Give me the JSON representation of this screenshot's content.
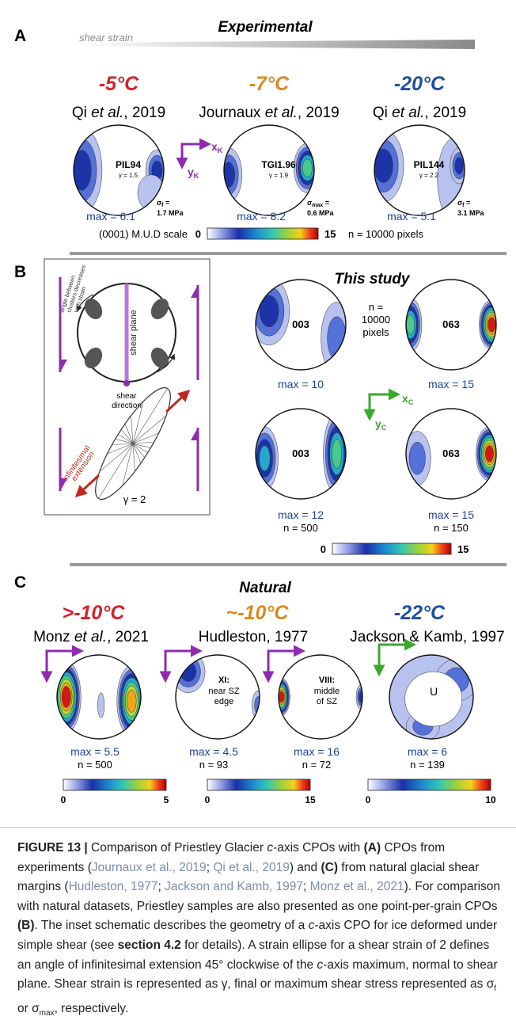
{
  "panel_a": {
    "letter": "A",
    "title": "Experimental",
    "gradient_label": "shear strain",
    "columns": [
      {
        "temperature": "-5°C",
        "temperature_color": "#d7202a",
        "reference": {
          "author": "Qi ",
          "etal": "et al.",
          "year": ", 2019"
        },
        "sample": "PIL94",
        "strain": "γ = 1.5",
        "stress": {
          "symbol": "σ",
          "sub": "f",
          "eq": " =",
          "value": "1.7 MPa"
        },
        "max": "max = 6.1"
      },
      {
        "temperature": "-7°C",
        "temperature_color": "#d98a1f",
        "reference": {
          "author": "Journaux ",
          "etal": "et al.",
          "year": ", 2019"
        },
        "sample": "TGI1.96",
        "strain": "γ = 1.9",
        "stress": {
          "symbol": "σ",
          "sub": "max",
          "eq": " =",
          "value": "0.6 MPa"
        },
        "max": "max = 8.2"
      },
      {
        "temperature": "-20°C",
        "temperature_color": "#1f4fa0",
        "reference": {
          "author": "Qi ",
          "etal": "et al.",
          "year": ", 2019"
        },
        "sample": "PIL144",
        "strain": "γ = 2.2",
        "stress": {
          "symbol": "σ",
          "sub": "f",
          "eq": " =",
          "value": "3.1 MPa"
        },
        "max": "max = 5.1"
      }
    ],
    "axes": {
      "x": "x",
      "x_sub": "K",
      "y": "y",
      "y_sub": "K",
      "color": "#8e2bb0"
    },
    "colorbar": {
      "label": "(0001) M.U.D scale",
      "min": 0,
      "max": 15,
      "note": "n = 10000 pixels"
    }
  },
  "panel_b": {
    "letter": "B",
    "title": "This study",
    "inset": {
      "cluster_note": [
        "angle between",
        "clusters decreases",
        "with strain"
      ],
      "shear_plane": "shear plane",
      "shear_direction": [
        "shear",
        "direction"
      ],
      "extension": [
        "infinitesimal",
        "extension"
      ],
      "strain": "γ = 2"
    },
    "top_row": [
      {
        "sample": "003",
        "max": "max = 10"
      },
      {
        "sample": "063",
        "max": "max = 15"
      }
    ],
    "pixel_note": [
      "n =",
      "10000",
      "pixels"
    ],
    "axes": {
      "x": "x",
      "x_sub": "C",
      "y": "y",
      "y_sub": "C",
      "color": "#3aa82c"
    },
    "bottom_row": [
      {
        "sample": "003",
        "max": "max = 12",
        "n": "n = 500"
      },
      {
        "sample": "063",
        "max": "max = 15",
        "n": "n = 150"
      }
    ],
    "colorbar": {
      "min": 0,
      "max": 15
    }
  },
  "panel_c": {
    "letter": "C",
    "title": "Natural",
    "studies": [
      {
        "temperature": ">-10°C",
        "temperature_color": "#d7202a",
        "reference": {
          "author": "Monz ",
          "etal": "et al.",
          "year": ", 2021"
        }
      },
      {
        "temperature": "~-10°C",
        "temperature_color": "#d98a1f",
        "reference": {
          "text": "Hudleston, 1977"
        }
      },
      {
        "temperature": "-22°C",
        "temperature_color": "#1f4fa0",
        "reference": {
          "text": "Jackson & Kamb, 1997"
        }
      }
    ],
    "figures": [
      {
        "max": "max = 5.5",
        "n": "n = 500"
      },
      {
        "label": {
          "bold": "XI:",
          "lines": [
            "near SZ",
            "edge"
          ]
        },
        "max": "max = 4.5",
        "n": "n = 93"
      },
      {
        "label": {
          "bold": "VIII:",
          "lines": [
            "middle",
            "of SZ"
          ]
        },
        "max": "max = 16",
        "n": "n = 72"
      },
      {
        "marker": "U",
        "max": "max = 6",
        "n": "n = 139"
      }
    ],
    "colorbars": [
      {
        "min": 0,
        "max": 5
      },
      {
        "min": 0,
        "max": 15
      },
      {
        "min": 0,
        "max": 10
      }
    ]
  },
  "caption": [
    {
      "text": "FIGURE 13 |",
      "style": "bold"
    },
    {
      "text": " Comparison of Priestley Glacier ",
      "style": "plain"
    },
    {
      "text": "c",
      "style": "italic"
    },
    {
      "text": "-axis CPOs with ",
      "style": "plain"
    },
    {
      "text": "(A)",
      "style": "bold"
    },
    {
      "text": " CPOs from experiments (",
      "style": "plain"
    },
    {
      "text": "Journaux et al., 2019",
      "style": "link"
    },
    {
      "text": "; ",
      "style": "plain"
    },
    {
      "text": "Qi et al., 2019",
      "style": "link"
    },
    {
      "text": ") and ",
      "style": "plain"
    },
    {
      "text": "(C)",
      "style": "bold"
    },
    {
      "text": " from natural glacial shear margins (",
      "style": "plain"
    },
    {
      "text": "Hudleston, 1977",
      "style": "link"
    },
    {
      "text": "; ",
      "style": "plain"
    },
    {
      "text": "Jackson and Kamb, 1997",
      "style": "link"
    },
    {
      "text": "; ",
      "style": "plain"
    },
    {
      "text": "Monz et al., 2021",
      "style": "link"
    },
    {
      "text": "). For comparison with natural datasets, Priestley samples are also presented as one point-per-grain CPOs ",
      "style": "plain"
    },
    {
      "text": "(B)",
      "style": "bold"
    },
    {
      "text": ". The inset schematic describes the geometry of a ",
      "style": "plain"
    },
    {
      "text": "c",
      "style": "italic"
    },
    {
      "text": "-axis CPO for ice deformed under simple shear (see ",
      "style": "plain"
    },
    {
      "text": "section 4.2",
      "style": "bold"
    },
    {
      "text": " for details). A strain ellipse for a shear strain of 2 defines an angle of infinitesimal extension 45° clockwise of the ",
      "style": "plain"
    },
    {
      "text": "c",
      "style": "italic"
    },
    {
      "text": "-axis maximum, normal to shear plane. Shear strain is represented as γ, final or maximum shear stress represented as σ",
      "style": "plain"
    },
    {
      "text": "f",
      "style": "sub"
    },
    {
      "text": " or σ",
      "style": "plain"
    },
    {
      "text": "max",
      "style": "sub"
    },
    {
      "text": ", respectively.",
      "style": "plain"
    }
  ]
}
